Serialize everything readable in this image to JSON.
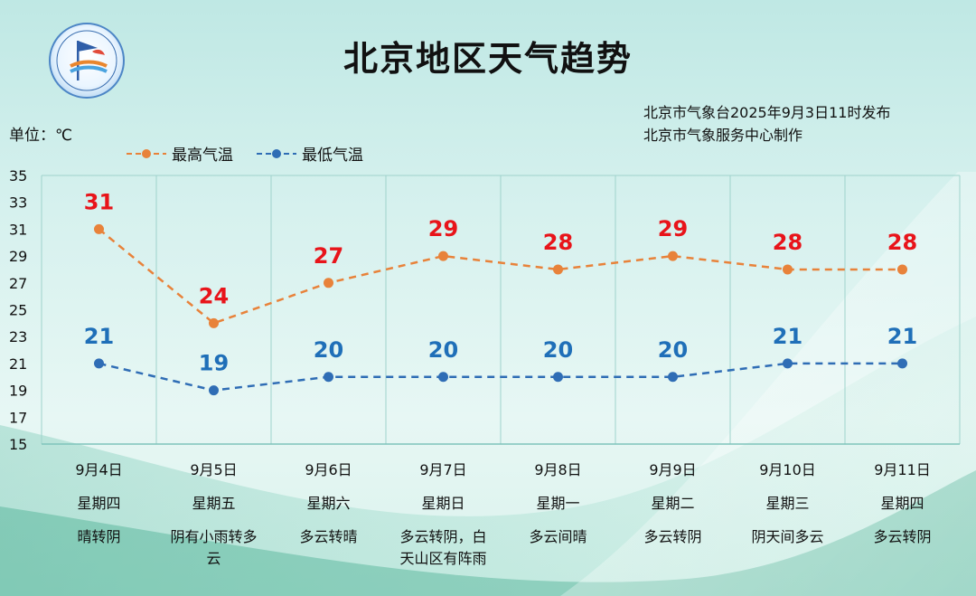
{
  "header": {
    "title": "北京地区天气趋势",
    "publisher_line1": "北京市气象台2025年9月3日11时发布",
    "publisher_line2": "北京市气象服务中心制作",
    "unit": "单位：℃"
  },
  "colors": {
    "high": "#e8823a",
    "low": "#2f6db5",
    "high_label": "#e8141a",
    "low_label": "#1f6fb8",
    "grid": "#9fd3cc"
  },
  "chart_data": {
    "type": "line",
    "categories": [
      "9月4日",
      "9月5日",
      "9月6日",
      "9月7日",
      "9月8日",
      "9月9日",
      "9月10日",
      "9月11日"
    ],
    "weekdays": [
      "星期四",
      "星期五",
      "星期六",
      "星期日",
      "星期一",
      "星期二",
      "星期三",
      "星期四"
    ],
    "weather": [
      [
        "晴转阴"
      ],
      [
        "阴有小雨转多",
        "云"
      ],
      [
        "多云转晴"
      ],
      [
        "多云转阴，白",
        "天山区有阵雨"
      ],
      [
        "多云间晴"
      ],
      [
        "多云转阴"
      ],
      [
        "阴天间多云"
      ],
      [
        "多云转阴"
      ]
    ],
    "series": [
      {
        "name": "最高气温",
        "values": [
          31,
          24,
          27,
          29,
          28,
          29,
          28,
          28
        ]
      },
      {
        "name": "最低气温",
        "values": [
          21,
          19,
          20,
          20,
          20,
          20,
          21,
          21
        ]
      }
    ],
    "yticks": [
      35,
      33,
      31,
      29,
      27,
      25,
      23,
      21,
      19,
      17,
      15
    ],
    "ylim": [
      15,
      35
    ],
    "grid": true,
    "legend": "top-left"
  }
}
